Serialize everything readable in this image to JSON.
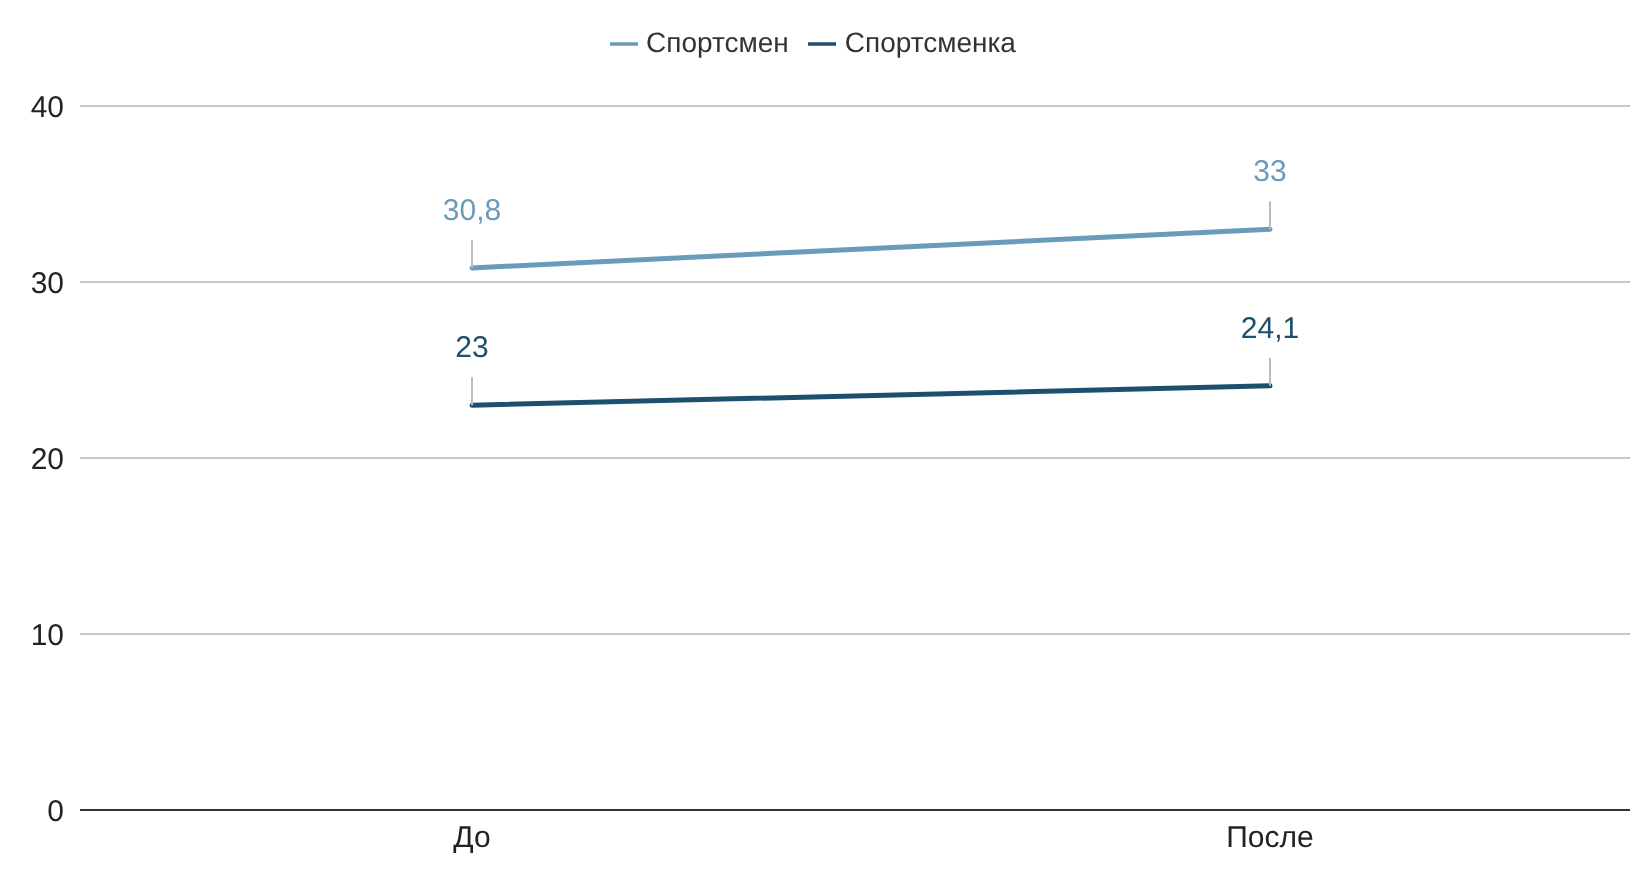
{
  "chart_data": {
    "type": "line",
    "categories": [
      "До",
      "После"
    ],
    "series": [
      {
        "name": "Спортсмен",
        "color": "#6a9bbb",
        "values": [
          30.8,
          33
        ],
        "value_labels": [
          "30,8",
          "33"
        ]
      },
      {
        "name": "Спортсменка",
        "color": "#1d4f6e",
        "values": [
          23,
          24.1
        ],
        "value_labels": [
          "23",
          "24,1"
        ]
      }
    ],
    "ylim": [
      0,
      40
    ],
    "yticks": [
      0,
      10,
      20,
      30,
      40
    ],
    "grid": "y",
    "legend": "top",
    "marker": "none"
  }
}
